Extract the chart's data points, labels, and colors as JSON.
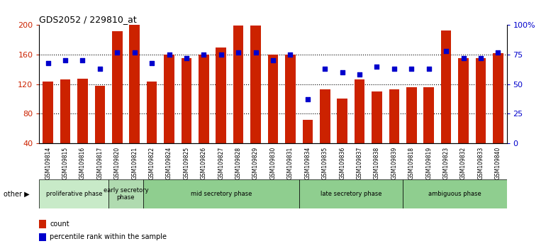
{
  "title": "GDS2052 / 229810_at",
  "samples": [
    "GSM109814",
    "GSM109815",
    "GSM109816",
    "GSM109817",
    "GSM109820",
    "GSM109821",
    "GSM109822",
    "GSM109824",
    "GSM109825",
    "GSM109826",
    "GSM109827",
    "GSM109828",
    "GSM109829",
    "GSM109830",
    "GSM109831",
    "GSM109834",
    "GSM109835",
    "GSM109836",
    "GSM109837",
    "GSM109838",
    "GSM109839",
    "GSM109818",
    "GSM109819",
    "GSM109823",
    "GSM109832",
    "GSM109833",
    "GSM109840"
  ],
  "counts": [
    123,
    126,
    127,
    118,
    192,
    200,
    123,
    160,
    155,
    160,
    170,
    199,
    199,
    160,
    160,
    72,
    113,
    100,
    126,
    110,
    113,
    116,
    116,
    193,
    155,
    155,
    162
  ],
  "percentiles": [
    68,
    70,
    70,
    63,
    77,
    77,
    68,
    75,
    72,
    75,
    75,
    77,
    77,
    70,
    75,
    37,
    63,
    60,
    58,
    65,
    63,
    63,
    63,
    78,
    72,
    72,
    77
  ],
  "phase_defs": [
    {
      "name": "proliferative phase",
      "start": 0,
      "end": 4,
      "color": "#c8eac8"
    },
    {
      "name": "early secretory\nphase",
      "start": 4,
      "end": 6,
      "color": "#b0dbb0"
    },
    {
      "name": "mid secretory phase",
      "start": 6,
      "end": 15,
      "color": "#8fce8f"
    },
    {
      "name": "late secretory phase",
      "start": 15,
      "end": 21,
      "color": "#8fce8f"
    },
    {
      "name": "ambiguous phase",
      "start": 21,
      "end": 27,
      "color": "#8fce8f"
    }
  ],
  "bar_color": "#cc2200",
  "dot_color": "#0000cc",
  "ylim_left": [
    40,
    200
  ],
  "ylim_right": [
    0,
    100
  ],
  "yticks_left": [
    40,
    80,
    120,
    160,
    200
  ],
  "yticks_right": [
    0,
    25,
    50,
    75,
    100
  ],
  "ytick_labels_right": [
    "0",
    "25",
    "50",
    "75",
    "100%"
  ],
  "dotted_line_values": [
    80,
    120,
    160
  ],
  "bg_color": "#ffffff"
}
